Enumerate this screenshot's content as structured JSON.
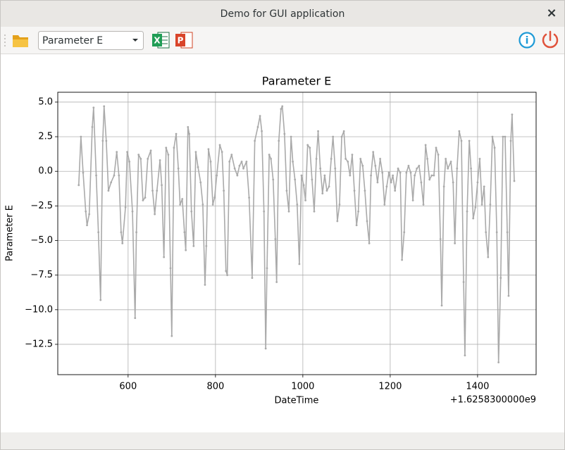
{
  "window": {
    "title": "Demo for GUI application",
    "close_label": "×"
  },
  "toolbar": {
    "combo_value": "Parameter E",
    "excel_icon": "X",
    "ppt_icon": "P",
    "info_icon": "i"
  },
  "chart_data": {
    "type": "line",
    "title": "Parameter E",
    "xlabel": "DateTime",
    "ylabel": "Parameter E",
    "x_offset_text": "+1.6258300000e9",
    "color": "#aaaaaa",
    "grid": true,
    "xlim": [
      439,
      1534
    ],
    "ylim": [
      -14.69,
      5.71
    ],
    "xticks": [
      600,
      800,
      1000,
      1200,
      1400
    ],
    "yticks": [
      {
        "value": 5,
        "label": "5.0"
      },
      {
        "value": 2.5,
        "label": "2.5"
      },
      {
        "value": 0,
        "label": "0.0"
      },
      {
        "value": -2.5,
        "label": "−2.5"
      },
      {
        "value": -5,
        "label": "−5.0"
      },
      {
        "value": -7.5,
        "label": "−7.5"
      },
      {
        "value": -10,
        "label": "−10.0"
      },
      {
        "value": -12.5,
        "label": "−12.5"
      }
    ],
    "x": [
      487,
      492,
      497,
      503,
      506,
      511,
      518,
      521,
      527,
      532,
      537,
      542,
      545,
      550,
      555,
      561,
      568,
      574,
      579,
      584,
      587,
      594,
      598,
      603,
      610,
      616,
      619,
      624,
      629,
      634,
      639,
      645,
      652,
      656,
      661,
      666,
      673,
      677,
      682,
      687,
      692,
      697,
      700,
      705,
      710,
      715,
      719,
      724,
      729,
      732,
      737,
      740,
      745,
      750,
      755,
      760,
      766,
      771,
      776,
      779,
      784,
      789,
      794,
      798,
      803,
      810,
      815,
      819,
      824,
      827,
      832,
      837,
      844,
      850,
      855,
      860,
      864,
      871,
      877,
      884,
      890,
      897,
      902,
      906,
      911,
      915,
      918,
      923,
      927,
      932,
      937,
      940,
      945,
      950,
      953,
      958,
      963,
      968,
      973,
      977,
      982,
      987,
      992,
      997,
      1002,
      1006,
      1011,
      1016,
      1021,
      1026,
      1031,
      1035,
      1040,
      1045,
      1050,
      1055,
      1060,
      1065,
      1069,
      1074,
      1079,
      1084,
      1089,
      1094,
      1098,
      1103,
      1108,
      1113,
      1118,
      1123,
      1127,
      1132,
      1137,
      1142,
      1147,
      1152,
      1156,
      1161,
      1166,
      1171,
      1177,
      1182,
      1187,
      1192,
      1197,
      1202,
      1206,
      1211,
      1218,
      1223,
      1227,
      1232,
      1237,
      1242,
      1247,
      1252,
      1256,
      1261,
      1266,
      1271,
      1276,
      1281,
      1285,
      1290,
      1295,
      1300,
      1305,
      1310,
      1315,
      1318,
      1323,
      1327,
      1332,
      1339,
      1344,
      1348,
      1353,
      1358,
      1363,
      1368,
      1371,
      1376,
      1381,
      1385,
      1390,
      1395,
      1400,
      1405,
      1410,
      1415,
      1419,
      1424,
      1429,
      1434,
      1439,
      1444,
      1448,
      1453,
      1458,
      1463,
      1468,
      1471,
      1476,
      1479,
      1484
    ],
    "values": [
      -1.0,
      2.5,
      -0.1,
      -2.9,
      -3.9,
      -3.1,
      3.2,
      4.6,
      -0.3,
      -4.4,
      -9.3,
      2.2,
      4.7,
      2.2,
      -1.4,
      -0.8,
      -0.3,
      1.4,
      -0.3,
      -4.4,
      -5.2,
      -2.6,
      1.4,
      0.7,
      -2.9,
      -10.6,
      -4.4,
      1.2,
      0.9,
      -2.1,
      -1.9,
      0.9,
      1.5,
      -1.4,
      -3.1,
      -1.4,
      0.8,
      -1.0,
      -6.2,
      1.7,
      1.2,
      -7.0,
      -11.9,
      1.7,
      2.7,
      0.2,
      -2.4,
      -2.0,
      -4.4,
      -5.7,
      3.2,
      2.7,
      -2.9,
      -5.4,
      1.4,
      0.3,
      -0.8,
      -2.4,
      -8.2,
      -5.4,
      1.6,
      0.7,
      -2.4,
      -1.9,
      -0.3,
      1.9,
      1.4,
      -1.4,
      -7.2,
      -7.5,
      0.7,
      1.2,
      0.2,
      -0.3,
      0.4,
      0.7,
      0.2,
      0.7,
      -1.9,
      -7.7,
      2.2,
      3.2,
      4.0,
      2.9,
      -2.9,
      -12.8,
      -7.0,
      1.2,
      0.9,
      -0.6,
      -4.9,
      -8.0,
      2.2,
      4.5,
      4.7,
      2.7,
      -1.4,
      -2.9,
      2.5,
      0.7,
      -0.6,
      -2.4,
      -6.7,
      -0.3,
      -1.0,
      -2.1,
      1.9,
      1.7,
      -0.6,
      -2.9,
      0.9,
      2.9,
      0.2,
      -1.6,
      -0.3,
      -1.4,
      -1.1,
      0.9,
      2.5,
      0.2,
      -3.6,
      -2.4,
      2.5,
      2.9,
      0.9,
      0.7,
      -0.3,
      1.2,
      -1.4,
      -3.9,
      -2.9,
      0.9,
      0.4,
      -1.4,
      -3.6,
      -5.2,
      -0.3,
      1.4,
      0.4,
      -0.8,
      0.9,
      -0.1,
      -2.4,
      -1.1,
      -0.1,
      -0.8,
      -0.3,
      -1.4,
      0.2,
      -0.1,
      -6.4,
      -4.4,
      -0.1,
      0.4,
      -0.1,
      -2.1,
      -0.3,
      0.2,
      0.4,
      -0.8,
      -2.4,
      1.9,
      0.9,
      -0.6,
      -0.3,
      -0.3,
      1.7,
      1.2,
      -4.9,
      -9.7,
      -1.1,
      0.9,
      0.2,
      0.7,
      -0.8,
      -5.2,
      0.2,
      2.9,
      2.2,
      -8.0,
      -13.3,
      -2.9,
      2.2,
      0.2,
      -3.4,
      -2.6,
      -0.8,
      0.9,
      -2.4,
      -1.1,
      -4.4,
      -6.2,
      -2.4,
      2.5,
      1.7,
      -4.4,
      -13.8,
      -7.7,
      2.5,
      2.5,
      -4.4,
      -9.0,
      2.2,
      4.1,
      -0.7
    ]
  }
}
